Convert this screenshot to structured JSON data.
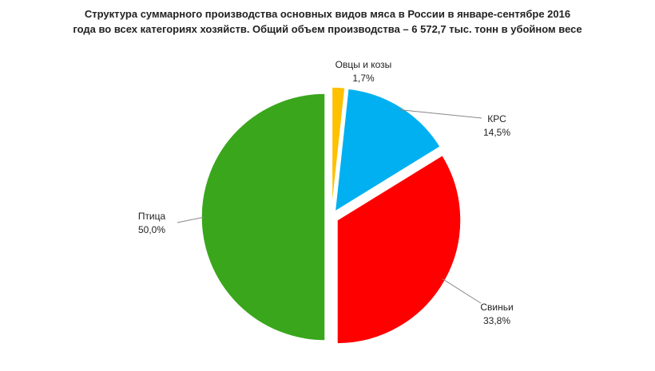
{
  "chart_data": {
    "type": "pie",
    "title": "Структура суммарного производства основных видов мяса в России в январе-сентябре 2016 года во всех категориях хозяйств.  Общий объем производства – 6 572,7 тыс. тонн в убойном весе",
    "categories": [
      "Овцы и козы",
      "КРС",
      "Свиньи",
      "Птица"
    ],
    "values": [
      1.7,
      14.5,
      33.8,
      50.0
    ],
    "value_labels": [
      "1,7%",
      "14,5%",
      "33,8%",
      "50,0%"
    ],
    "colors": [
      "#ffc000",
      "#00b0f0",
      "#ff0000",
      "#3aa61c"
    ]
  }
}
